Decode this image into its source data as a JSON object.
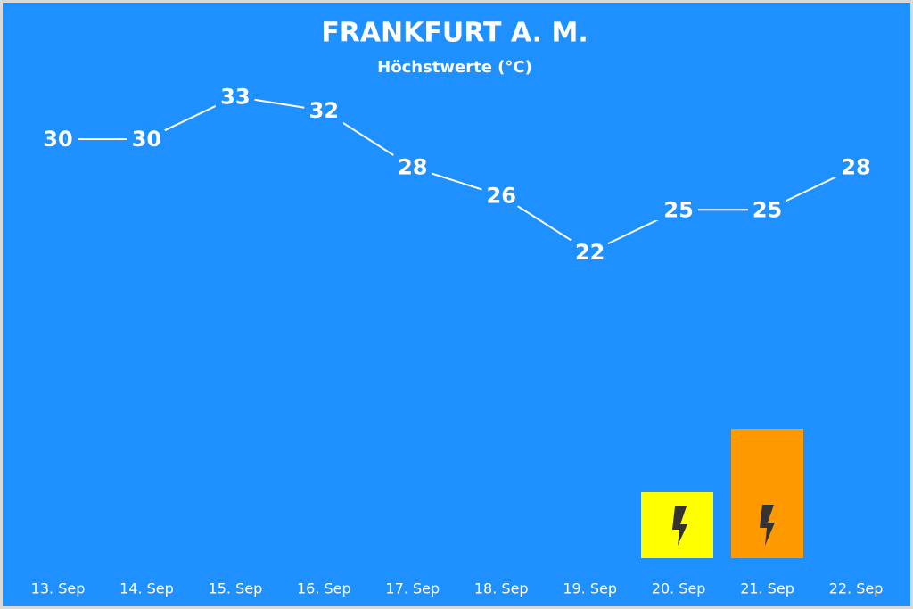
{
  "chart_data": {
    "type": "line",
    "title": "FRANKFURT A. M.",
    "subtitle": "Höchstwerte (°C)",
    "categories": [
      "13. Sep",
      "14. Sep",
      "15. Sep",
      "16. Sep",
      "17. Sep",
      "18. Sep",
      "19. Sep",
      "20. Sep",
      "21. Sep",
      "22. Sep"
    ],
    "series": [
      {
        "color": "#ffffff",
        "values": [
          30,
          30,
          33,
          32,
          28,
          26,
          22,
          25,
          25,
          28
        ]
      }
    ],
    "ylim": [
      0,
      38
    ]
  }
}
